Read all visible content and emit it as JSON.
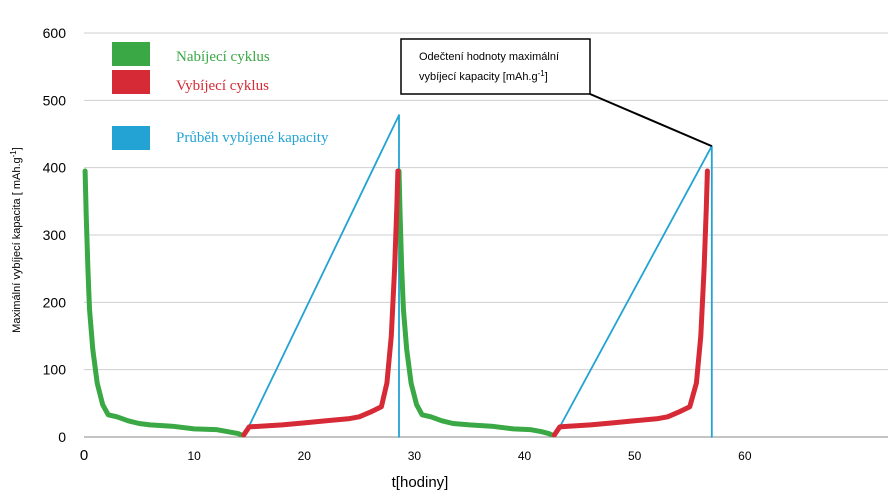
{
  "chart_data": {
    "type": "line",
    "xlabel": "t[hodiny]",
    "ylabel": "Maximální vybíjecí kapacita [ mAh.g",
    "ylabel_sup": "-1",
    "ylabel_end": "]",
    "xlim": [
      0,
      73
    ],
    "ylim": [
      0,
      600
    ],
    "xticks": [
      0,
      10,
      20,
      30,
      40,
      50,
      60
    ],
    "yticks": [
      0,
      100,
      200,
      300,
      400,
      500,
      600
    ],
    "grid": "horizontal",
    "legend_position": "top-left",
    "colors": {
      "charge": "#3aa845",
      "discharge": "#d62a36",
      "capacity": "#22a3d3",
      "grid": "#cfcfcf",
      "axis": "#888888",
      "annotation": "#000000"
    },
    "legend": [
      {
        "label": "Nabíjecí cyklus",
        "color": "#3aa845",
        "series": "charge"
      },
      {
        "label": "Vybíjecí cyklus",
        "color": "#d62a36",
        "series": "discharge"
      },
      {
        "label": "Průběh vybíjené kapacity",
        "color": "#22a3d3",
        "series": "capacity"
      }
    ],
    "series": [
      {
        "id": "charge",
        "color": "#3aa845",
        "segments": [
          [
            [
              0.1,
              395
            ],
            [
              0.2,
              330
            ],
            [
              0.35,
              250
            ],
            [
              0.5,
              190
            ],
            [
              0.8,
              130
            ],
            [
              1.2,
              80
            ],
            [
              1.7,
              48
            ],
            [
              2.2,
              33
            ],
            [
              3,
              30
            ],
            [
              4,
              24
            ],
            [
              5,
              20
            ],
            [
              6,
              18
            ],
            [
              8,
              16
            ],
            [
              10,
              12
            ],
            [
              12,
              11
            ],
            [
              13,
              8
            ],
            [
              14,
              5
            ],
            [
              14.3,
              3
            ]
          ],
          [
            [
              28.6,
              395
            ],
            [
              28.7,
              330
            ],
            [
              28.85,
              250
            ],
            [
              29,
              190
            ],
            [
              29.3,
              130
            ],
            [
              29.7,
              80
            ],
            [
              30.2,
              48
            ],
            [
              30.7,
              33
            ],
            [
              31.5,
              30
            ],
            [
              32.5,
              24
            ],
            [
              33.5,
              20
            ],
            [
              35,
              18
            ],
            [
              37,
              16
            ],
            [
              39,
              12
            ],
            [
              40.5,
              11
            ],
            [
              41.5,
              8
            ],
            [
              42.2,
              5
            ],
            [
              42.5,
              3
            ]
          ]
        ]
      },
      {
        "id": "discharge",
        "color": "#d62a36",
        "segments": [
          [
            [
              14.5,
              3
            ],
            [
              15,
              15
            ],
            [
              16,
              16
            ],
            [
              18,
              18
            ],
            [
              20,
              21
            ],
            [
              22,
              24
            ],
            [
              24,
              27
            ],
            [
              25,
              30
            ],
            [
              26,
              37
            ],
            [
              27,
              45
            ],
            [
              27.5,
              80
            ],
            [
              27.9,
              150
            ],
            [
              28.2,
              250
            ],
            [
              28.4,
              340
            ],
            [
              28.5,
              395
            ]
          ],
          [
            [
              42.7,
              3
            ],
            [
              43.2,
              15
            ],
            [
              44,
              16
            ],
            [
              46,
              18
            ],
            [
              48,
              21
            ],
            [
              50,
              24
            ],
            [
              52,
              27
            ],
            [
              53,
              30
            ],
            [
              54,
              37
            ],
            [
              55,
              45
            ],
            [
              55.6,
              80
            ],
            [
              56,
              150
            ],
            [
              56.3,
              250
            ],
            [
              56.5,
              340
            ],
            [
              56.6,
              395
            ]
          ]
        ]
      },
      {
        "id": "capacity",
        "color": "#22a3d3",
        "segments": [
          [
            [
              14.6,
              3
            ],
            [
              28.6,
              478
            ],
            [
              28.6,
              0
            ]
          ],
          [
            [
              42.8,
              3
            ],
            [
              57,
              432
            ],
            [
              57,
              0
            ]
          ]
        ]
      }
    ],
    "annotation": {
      "lines": [
        "Odečtení hodnoty maximální",
        "vybíjecí kapacity [mAh.g",
        "]"
      ],
      "superscript": "-1",
      "target": [
        57,
        432
      ]
    }
  }
}
